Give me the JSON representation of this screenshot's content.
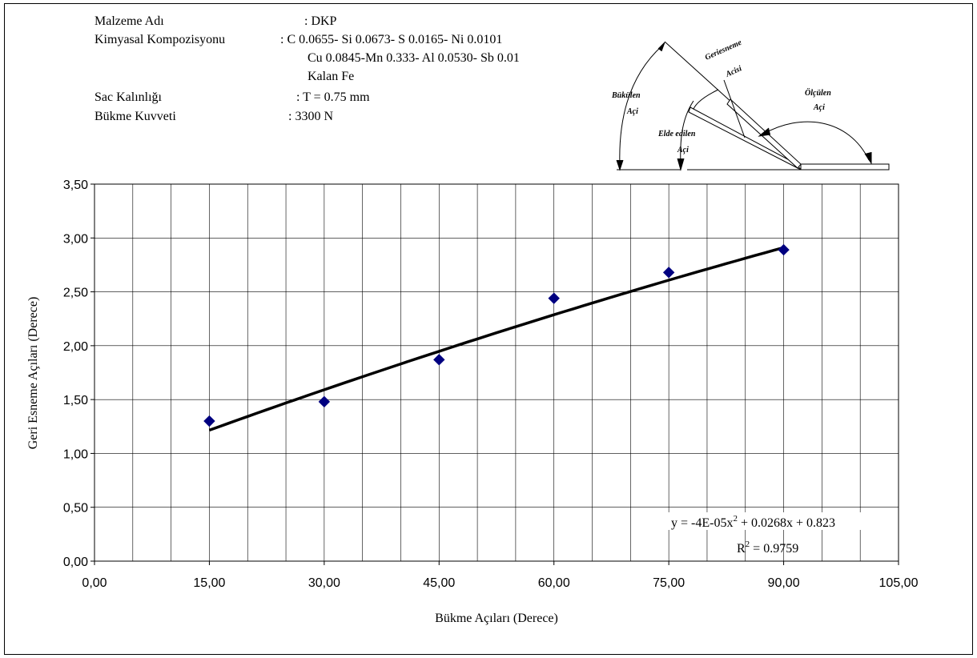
{
  "info": {
    "material_label": "Malzeme Adı",
    "material_value": ": DKP",
    "composition_label": "Kimyasal Kompozisyonu",
    "composition_lines": [
      ": C 0.0655- Si 0.0673- S 0.0165- Ni 0.0101",
      "Cu 0.0845-Mn 0.333- Al 0.0530- Sb 0.01",
      "Kalan Fe"
    ],
    "thickness_label": "Sac Kalınlığı",
    "thickness_value": ": T = 0.75 mm",
    "force_label": "Bükme Kuvveti",
    "force_value": ": 3300 N"
  },
  "diagram": {
    "label_bukulen": "Bükülen",
    "label_aci1": "Açi",
    "label_geriesneme": "Geriesneme",
    "label_acisi": "Acisi",
    "label_elde": "Elde edilen",
    "label_aci2": "Açi",
    "label_olculen": "Ölçülen",
    "label_aci3": "Açi"
  },
  "chart_data": {
    "type": "scatter",
    "xlabel": "Bükme Açıları (Derece)",
    "ylabel": "Geri Esneme Açıları (Derece)",
    "xlim": [
      0,
      105
    ],
    "ylim": [
      0,
      3.5
    ],
    "x_ticks": [
      "0,00",
      "15,00",
      "30,00",
      "45,00",
      "60,00",
      "75,00",
      "90,00",
      "105,00"
    ],
    "y_ticks": [
      "0,00",
      "0,50",
      "1,00",
      "1,50",
      "2,00",
      "2,50",
      "3,00",
      "3,50"
    ],
    "x_tick_values": [
      0,
      15,
      30,
      45,
      60,
      75,
      90,
      105
    ],
    "y_tick_values": [
      0,
      0.5,
      1.0,
      1.5,
      2.0,
      2.5,
      3.0,
      3.5
    ],
    "grid": true,
    "x": [
      15,
      30,
      45,
      60,
      75,
      90
    ],
    "y": [
      1.3,
      1.48,
      1.87,
      2.44,
      2.68,
      2.89
    ],
    "marker_color": "#000080",
    "trendline": {
      "type": "polynomial",
      "a": -4e-05,
      "b": 0.0268,
      "c": 0.823,
      "x_range": [
        15,
        90
      ],
      "color": "#000000",
      "equation_text": "y = -4E-05x",
      "equation_sup": "2",
      "equation_rest": " + 0.0268x + 0.823",
      "r2_prefix": "R",
      "r2_sup": "2",
      "r2_rest": " = 0.9759"
    }
  }
}
